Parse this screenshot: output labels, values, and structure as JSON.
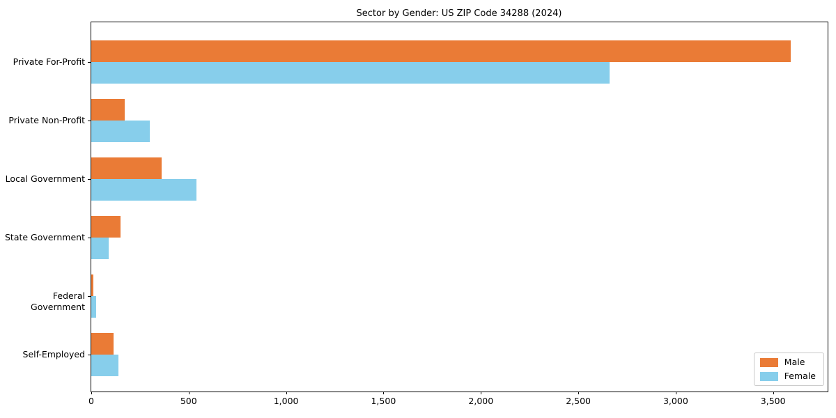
{
  "title": "Sector by Gender: US ZIP Code 34288 (2024)",
  "colors": {
    "male": "#EA7B36",
    "female": "#87CEEB",
    "axis": "#000000",
    "legend_border": "#c9c9c9",
    "background": "#ffffff"
  },
  "legend": {
    "position": "lower right",
    "entries": [
      {
        "label": "Male",
        "color": "#EA7B36"
      },
      {
        "label": "Female",
        "color": "#87CEEB"
      }
    ]
  },
  "chart_data": {
    "type": "bar",
    "orientation": "horizontal",
    "title": "Sector by Gender: US ZIP Code 34288 (2024)",
    "categories": [
      "Private For-Profit",
      "Private Non-Profit",
      "Local Government",
      "State Government",
      "Federal Government",
      "Self-Employed"
    ],
    "series": [
      {
        "name": "Male",
        "color": "#EA7B36",
        "values": [
          3590,
          170,
          360,
          150,
          12,
          115
        ]
      },
      {
        "name": "Female",
        "color": "#87CEEB",
        "values": [
          2660,
          300,
          540,
          90,
          25,
          140
        ]
      }
    ],
    "xlabel": "",
    "ylabel": "",
    "xlim": [
      0,
      3780
    ],
    "xticks": [
      0,
      500,
      1000,
      1500,
      2000,
      2500,
      3000,
      3500
    ],
    "xtick_labels": [
      "0",
      "500",
      "1,000",
      "1,500",
      "2,000",
      "2,500",
      "3,000",
      "3,500"
    ],
    "grid": false,
    "legend_position": "lower right"
  }
}
